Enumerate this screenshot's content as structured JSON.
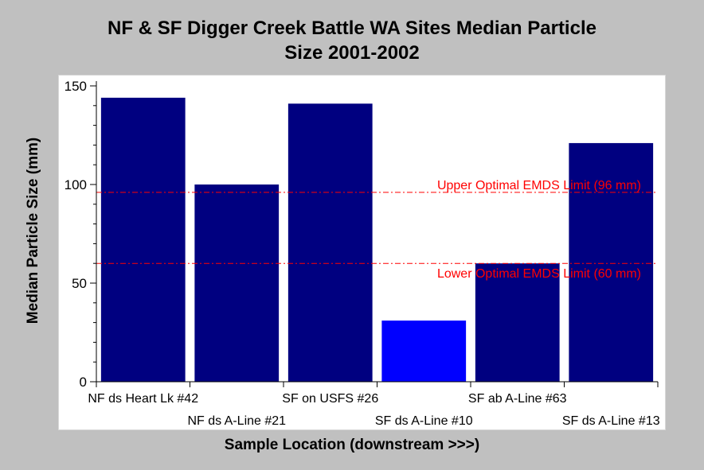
{
  "chart_data": {
    "type": "bar",
    "title": [
      "NF & SF Digger Creek Battle WA Sites Median Particle",
      "Size 2001-2002"
    ],
    "xlabel": "Sample Location (downstream >>>)",
    "ylabel": "Median Particle Size (mm)",
    "categories": [
      "NF ds Heart Lk #42",
      "NF ds A-Line #21",
      "SF on USFS #26",
      "SF ds A-Line #10",
      "SF ab A-Line #63",
      "SF ds A-Line #13"
    ],
    "values": [
      144,
      100,
      141,
      31,
      60,
      121
    ],
    "bar_colors": [
      "#000080",
      "#000080",
      "#000080",
      "#0000ff",
      "#000080",
      "#000080"
    ],
    "ylim": [
      0,
      150
    ],
    "yticks": [
      0,
      50,
      100,
      150
    ],
    "grid": false,
    "reference_lines": [
      {
        "value": 96,
        "label": "Upper Optimal EMDS Limit (96 mm)",
        "color": "#ff0000"
      },
      {
        "value": 60,
        "label": "Lower Optimal EMDS Limit (60 mm)",
        "color": "#ff0000"
      }
    ]
  }
}
